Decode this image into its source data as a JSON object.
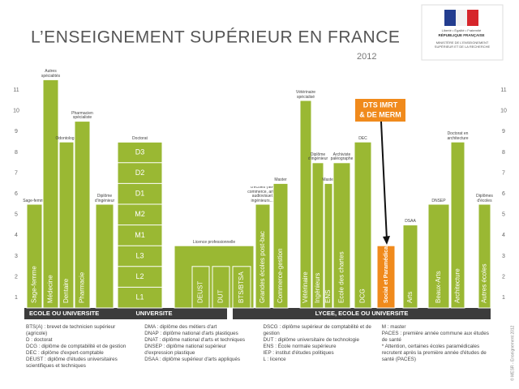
{
  "header": {
    "title": "L’ENSEIGNEMENT SUPÉRIEUR EN FRANCE",
    "year": "2012",
    "logo": [
      "Liberté • Égalité • Fraternité",
      "RÉPUBLIQUE FRANÇAISE",
      "MINISTÈRE DE L'ENSEIGNEMENT SUPÉRIEUR ET DE LA RECHERCHE"
    ]
  },
  "levels": [
    1,
    2,
    3,
    4,
    5,
    6,
    7,
    8,
    9,
    10,
    11
  ],
  "bars": [
    {
      "label": "Sage-femme",
      "top": "Sage-femme",
      "years": 5
    },
    {
      "label": "Médecine",
      "top": "Autres spécialités",
      "years": 11
    },
    {
      "label": "Dentaire",
      "top": "Odontologie",
      "years": 8
    },
    {
      "label": "Pharmacie",
      "top": "Pharmacien spécialiste",
      "years": 9
    },
    {
      "label": "",
      "top": "Diplôme d'ingénieur",
      "years": 5
    },
    {
      "label": "",
      "top": "Doctorat",
      "years": 8,
      "segments": [
        "L1",
        "L2",
        "L3",
        "M1",
        "M2",
        "D1",
        "D2",
        "D3"
      ]
    },
    {
      "label": "",
      "top": "Licence professionnelle",
      "years": 3
    },
    {
      "label": "DEUST",
      "years": 2
    },
    {
      "label": "DUT",
      "years": 2
    },
    {
      "label": "BTS/BTSA",
      "years": 2
    },
    {
      "label": "Grandes écoles post-bac",
      "top": "Diplômes d'écoles (IEP, commerce, art et audiovisuel, ingénieurs...)",
      "years": 5
    },
    {
      "label": "Commerce-gestion",
      "top": "Master",
      "years": 6
    },
    {
      "label": "Vétérinaire",
      "top": "Vétérinaire spécialisé",
      "years": 10
    },
    {
      "label": "Ingénieurs",
      "top": "Diplôme d'ingénieur",
      "years": 7
    },
    {
      "label": "ENS",
      "top": "Master",
      "years": 6
    },
    {
      "label": "Ecole des chartes",
      "top": "Archiviste paléographe",
      "years": 7
    },
    {
      "label": "DCG",
      "top": "DEC",
      "years": 8
    },
    {
      "label": "Social et Paramédical",
      "years": 3,
      "highlight": true
    },
    {
      "label": "Arts",
      "top": "DSAA",
      "years": 4
    },
    {
      "label": "Beaux-Arts",
      "top": "DNSEP",
      "years": 5
    },
    {
      "label": "Architecture",
      "top": "Doctorat en architecture",
      "years": 8
    },
    {
      "label": "Autres écoles",
      "top": "Diplômes d'écoles",
      "years": 5
    }
  ],
  "annotation": [
    "DTS IMRT",
    "& DE MERM"
  ],
  "bands": [
    "ECOLE OU UNIVERSITE",
    "UNIVERSITE",
    "LYCEE, ECOLE OU UNIVERSITE"
  ],
  "glossary": [
    [
      "BTS(A) : brevet de technicien supérieur (agricole)",
      "D : doctorat",
      "DCG : diplôme de comptabilité et de gestion",
      "DEC : diplôme d'expert-comptable",
      "DEUST : diplôme d'études universitaires scientifiques et techniques"
    ],
    [
      "DMA : diplôme des métiers d'art",
      "DNAP : diplôme national d'arts plastiques",
      "DNAT : diplôme national d'arts et techniques",
      "DNSEP : diplôme national supérieur d'expression plastique",
      "DSAA : diplôme supérieur d'arts appliqués"
    ],
    [
      "DSCG : diplôme supérieur de comptabilité et de gestion",
      "DUT : diplôme universitaire de technologie",
      "ENS : École normale supérieure",
      "IEP : institut d'études politiques",
      "L : licence"
    ],
    [
      "M : master",
      "PACES : première année commune aux études de santé",
      "* Attention, certaines écoles paramédicales recrutent après la première année d'études de santé (PACES)"
    ]
  ],
  "credit": "© MESR - Enseignement 2012"
}
